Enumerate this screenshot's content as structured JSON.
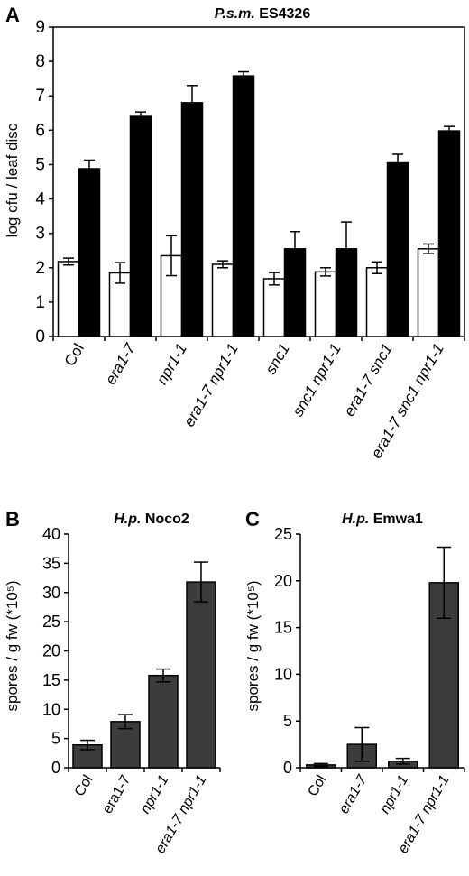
{
  "panels": [
    {
      "letter": "A",
      "title_italic": "P.s.m.",
      "title_rest": " ES4326",
      "ylabel": "log cfu / leaf disc",
      "chart_data": {
        "type": "bar",
        "categories": [
          "Col",
          "era1-7",
          "npr1-1",
          "era1-7 npr1-1",
          "snc1",
          "snc1 npr1-1",
          "era1-7 snc1",
          "era1-7 snc1 npr1-1"
        ],
        "category_italic": [
          false,
          true,
          true,
          true,
          true,
          true,
          true,
          true
        ],
        "series": [
          {
            "values": [
              2.18,
              1.85,
              2.35,
              2.1,
              1.68,
              1.88,
              2.0,
              2.55
            ],
            "errors": [
              0.1,
              0.3,
              0.58,
              0.1,
              0.18,
              0.12,
              0.17,
              0.14
            ],
            "color": "#ffffff"
          },
          {
            "values": [
              4.88,
              6.4,
              6.8,
              7.58,
              2.55,
              2.55,
              5.05,
              5.98
            ],
            "errors": [
              0.25,
              0.13,
              0.5,
              0.12,
              0.5,
              0.78,
              0.25,
              0.13
            ],
            "color": "#000000"
          }
        ],
        "ylim": [
          0,
          9
        ],
        "yticks": [
          0,
          1,
          2,
          3,
          4,
          5,
          6,
          7,
          8,
          9
        ]
      }
    },
    {
      "letter": "B",
      "title_italic": "H.p.",
      "title_rest": " Noco2",
      "ylabel": "spores / g fw  (*10⁵)",
      "chart_data": {
        "type": "bar",
        "categories": [
          "Col",
          "era1-7",
          "npr1-1",
          "era1-7 npr1-1"
        ],
        "category_italic": [
          false,
          false,
          true,
          true
        ],
        "series": [
          {
            "values": [
              3.9,
              7.9,
              15.8,
              31.8
            ],
            "errors": [
              0.8,
              1.2,
              1.1,
              3.4
            ],
            "color": "#3c3c3c"
          }
        ],
        "ylim": [
          0,
          40
        ],
        "yticks": [
          0,
          5,
          10,
          15,
          20,
          25,
          30,
          35,
          40
        ]
      }
    },
    {
      "letter": "C",
      "title_italic": "H.p.",
      "title_rest": " Emwa1",
      "ylabel": "spores / g fw  (*10⁵)",
      "chart_data": {
        "type": "bar",
        "categories": [
          "Col",
          "era1-7",
          "npr1-1",
          "era1-7 npr1-1"
        ],
        "category_italic": [
          false,
          true,
          true,
          true
        ],
        "series": [
          {
            "values": [
              0.3,
              2.5,
              0.7,
              19.8
            ],
            "errors": [
              0.15,
              1.8,
              0.3,
              3.8
            ],
            "color": "#3c3c3c"
          }
        ],
        "ylim": [
          0,
          25
        ],
        "yticks": [
          0,
          5,
          10,
          15,
          20,
          25
        ]
      }
    }
  ]
}
